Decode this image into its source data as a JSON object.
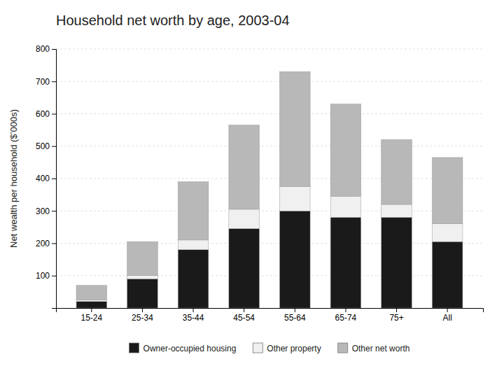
{
  "chart_data": {
    "type": "bar",
    "stacked": true,
    "title": "Household net worth by age, 2003-04",
    "ylabel": "Net wealth per household ($’000s)",
    "categories": [
      "15-24",
      "25-34",
      "35-44",
      "45-54",
      "55-64",
      "65-74",
      "75+",
      "All"
    ],
    "series": [
      {
        "name": "Owner-occupied housing",
        "color": "#1a1a1a",
        "values": [
          20,
          90,
          180,
          245,
          300,
          280,
          280,
          205
        ]
      },
      {
        "name": "Other property",
        "color": "#f0f0f0",
        "values": [
          5,
          10,
          30,
          60,
          75,
          65,
          40,
          55
        ]
      },
      {
        "name": "Other net worth",
        "color": "#b8b8b8",
        "values": [
          45,
          105,
          180,
          260,
          355,
          285,
          200,
          205
        ]
      }
    ],
    "ylim": [
      0,
      800
    ],
    "yticks": [
      100,
      200,
      300,
      400,
      500,
      600,
      700,
      800
    ],
    "grid": true,
    "legend": "bottom"
  }
}
